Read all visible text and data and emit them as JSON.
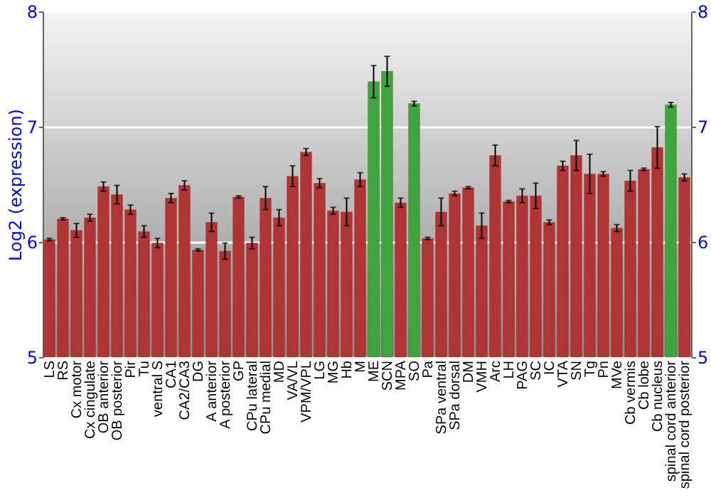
{
  "chart_data": {
    "type": "bar",
    "ylabel": "Log2 (expression)",
    "categories": [
      "LS",
      "RS",
      "Cx motor",
      "Cx cingulate",
      "OB anterior",
      "OB posterior",
      "Pir",
      "Tu",
      "ventral S",
      "CA1",
      "CA2/CA3",
      "DG",
      "A anterior",
      "A posterior",
      "GP",
      "CPu lateral",
      "CPu medial",
      "MD",
      "VA/VL",
      "VPM/VPL",
      "LG",
      "MG",
      "Hb",
      "M",
      "ME",
      "SCN",
      "MPA",
      "SO",
      "Pa",
      "SPa ventral",
      "SPa dorsal",
      "DM",
      "VMH",
      "Arc",
      "LH",
      "PAG",
      "SC",
      "IC",
      "VTA",
      "SN",
      "Tg",
      "Pn",
      "MVe",
      "Cb vermis",
      "Cb lobe",
      "Cb nucleus",
      "spinal cord anterior",
      "spinal cord posterior"
    ],
    "values": [
      6.02,
      6.2,
      6.1,
      6.21,
      6.48,
      6.41,
      6.28,
      6.09,
      5.99,
      6.38,
      6.49,
      5.93,
      6.17,
      5.92,
      6.39,
      5.99,
      6.38,
      6.21,
      6.57,
      6.78,
      6.51,
      6.27,
      6.26,
      6.54,
      7.39,
      7.48,
      6.34,
      7.2,
      6.03,
      6.26,
      6.42,
      6.47,
      6.14,
      6.75,
      6.35,
      6.4,
      6.4,
      6.17,
      6.66,
      6.75,
      6.59,
      6.59,
      6.12,
      6.53,
      6.63,
      6.82,
      7.19,
      6.56
    ],
    "errors": [
      0.01,
      0.01,
      0.06,
      0.03,
      0.04,
      0.08,
      0.04,
      0.05,
      0.04,
      0.04,
      0.04,
      0.01,
      0.08,
      0.07,
      0.01,
      0.05,
      0.1,
      0.07,
      0.09,
      0.03,
      0.04,
      0.03,
      0.12,
      0.06,
      0.14,
      0.13,
      0.04,
      0.02,
      0.01,
      0.12,
      0.02,
      0.01,
      0.11,
      0.09,
      0.01,
      0.06,
      0.11,
      0.02,
      0.04,
      0.13,
      0.17,
      0.02,
      0.03,
      0.09,
      0.01,
      0.18,
      0.02,
      0.03
    ],
    "colors": [
      "#b03434",
      "#b03434",
      "#b03434",
      "#b03434",
      "#b03434",
      "#b03434",
      "#b03434",
      "#b03434",
      "#b03434",
      "#b03434",
      "#b03434",
      "#b03434",
      "#b03434",
      "#b03434",
      "#b03434",
      "#b03434",
      "#b03434",
      "#b03434",
      "#b03434",
      "#b03434",
      "#b03434",
      "#b03434",
      "#b03434",
      "#b03434",
      "#3ca53c",
      "#3ca53c",
      "#b03434",
      "#3ca53c",
      "#b03434",
      "#b03434",
      "#b03434",
      "#b03434",
      "#b03434",
      "#b03434",
      "#b03434",
      "#b03434",
      "#b03434",
      "#b03434",
      "#b03434",
      "#b03434",
      "#b03434",
      "#b03434",
      "#b03434",
      "#b03434",
      "#b03434",
      "#b03434",
      "#3ca53c",
      "#b03434"
    ],
    "ylim": [
      5,
      8
    ],
    "yticks": [
      5,
      6,
      7,
      8
    ],
    "y2lim": [
      5,
      8
    ],
    "y2ticks": [
      5,
      6,
      7,
      8
    ],
    "grid": "y"
  }
}
